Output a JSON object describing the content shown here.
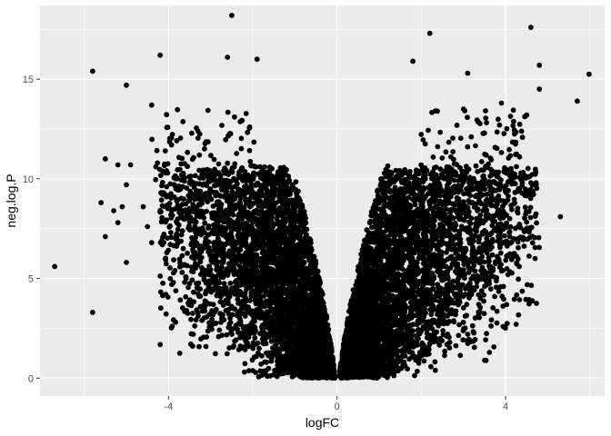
{
  "chart_data": {
    "type": "scatter",
    "title": "",
    "xlabel": "logFC",
    "ylabel": "neg.log.P",
    "xlim": [
      -7.05,
      6.35
    ],
    "ylim": [
      -0.9,
      18.7
    ],
    "x_ticks": [
      -4,
      0,
      4
    ],
    "x_tick_labels": [
      "-4",
      "0",
      "4"
    ],
    "y_ticks": [
      0,
      5,
      10,
      15
    ],
    "y_tick_labels": [
      "0",
      "5",
      "10",
      "15"
    ],
    "x_minor": [
      -6,
      -2,
      2,
      6
    ],
    "y_minor": [
      2.5,
      7.5,
      12.5,
      17.5
    ],
    "grid": true,
    "legend": "none",
    "colors": {
      "panel": "#ebebeb",
      "grid": "#ffffff",
      "point": "#000000"
    },
    "highlighted_points": [
      {
        "x": -2.5,
        "y": 18.2
      },
      {
        "x": 2.2,
        "y": 17.3
      },
      {
        "x": 4.6,
        "y": 17.6
      },
      {
        "x": -4.2,
        "y": 16.2
      },
      {
        "x": -2.6,
        "y": 16.1
      },
      {
        "x": -1.9,
        "y": 16.0
      },
      {
        "x": 1.8,
        "y": 15.9
      },
      {
        "x": -5.8,
        "y": 15.4
      },
      {
        "x": 5.98,
        "y": 15.25
      },
      {
        "x": 4.8,
        "y": 15.7
      },
      {
        "x": 3.1,
        "y": 15.3
      },
      {
        "x": -5.0,
        "y": 14.7
      },
      {
        "x": 4.8,
        "y": 14.5
      },
      {
        "x": 5.7,
        "y": 13.9
      },
      {
        "x": 3.9,
        "y": 13.8
      },
      {
        "x": 3.0,
        "y": 13.5
      },
      {
        "x": 4.5,
        "y": 13.2
      },
      {
        "x": -4.4,
        "y": 13.7
      },
      {
        "x": 3.5,
        "y": 12.3
      },
      {
        "x": 4.6,
        "y": 9.8
      },
      {
        "x": -5.5,
        "y": 11.0
      },
      {
        "x": -5.2,
        "y": 10.7
      },
      {
        "x": -4.9,
        "y": 10.7
      },
      {
        "x": -4.3,
        "y": 10.6
      },
      {
        "x": -5.6,
        "y": 8.8
      },
      {
        "x": -5.1,
        "y": 8.6
      },
      {
        "x": -5.3,
        "y": 8.4
      },
      {
        "x": -4.6,
        "y": 8.6
      },
      {
        "x": -5.0,
        "y": 9.7
      },
      {
        "x": -5.2,
        "y": 7.8
      },
      {
        "x": -5.5,
        "y": 7.1
      },
      {
        "x": -4.5,
        "y": 7.6
      },
      {
        "x": -4.4,
        "y": 6.8
      },
      {
        "x": -5.0,
        "y": 5.8
      },
      {
        "x": -6.7,
        "y": 5.6
      },
      {
        "x": -5.8,
        "y": 3.3
      },
      {
        "x": 5.3,
        "y": 8.1
      },
      {
        "x": 4.1,
        "y": 7.1
      },
      {
        "x": 4.3,
        "y": 7.0
      },
      {
        "x": 4.5,
        "y": 7.5
      },
      {
        "x": 4.7,
        "y": 6.0
      },
      {
        "x": 3.7,
        "y": 5.5
      },
      {
        "x": 3.8,
        "y": 6.1
      },
      {
        "x": 3.1,
        "y": 2.2
      },
      {
        "x": 3.4,
        "y": 4.0
      }
    ],
    "bulk_distribution": {
      "count": 9000,
      "x_range": [
        -4.2,
        4.8
      ],
      "y_range": [
        0,
        11
      ],
      "shape": "volcano, apex near x=0, y=0",
      "seed": 7
    }
  }
}
